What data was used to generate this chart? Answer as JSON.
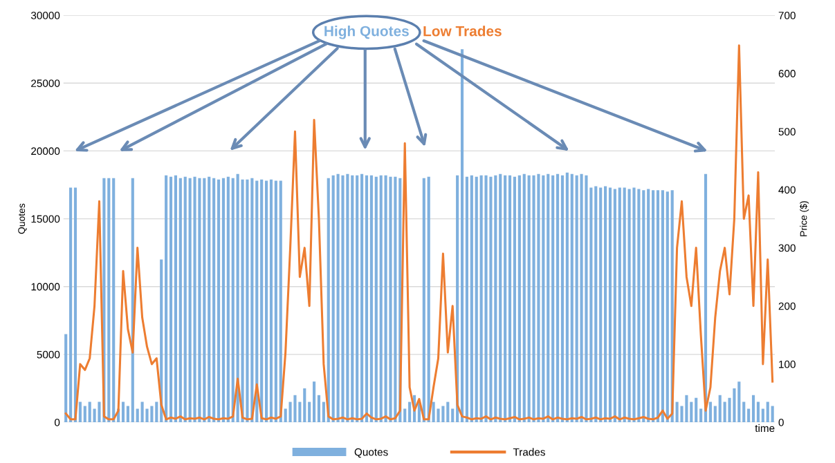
{
  "chart_data": {
    "type": "bar",
    "ylabel": "Quotes",
    "y2label": "Price ($)",
    "xlabel": "time",
    "annotations": [
      "High Quotes",
      "Low Trades"
    ],
    "categories": [
      null,
      null,
      null,
      null,
      null,
      null,
      null,
      null,
      null,
      null,
      null,
      null,
      null,
      null,
      null,
      null,
      null,
      null,
      null,
      null,
      null,
      null,
      null,
      null,
      null,
      null,
      null,
      null,
      null,
      null,
      null,
      null,
      null,
      null,
      null,
      null,
      null,
      null,
      null,
      null,
      null,
      null,
      null,
      null,
      null,
      null,
      null,
      null,
      null,
      null,
      null,
      null,
      null,
      null,
      null,
      null,
      null,
      null,
      null,
      null,
      null,
      null,
      null,
      null,
      null,
      null,
      null,
      null,
      null,
      null,
      null,
      null,
      null,
      null,
      null,
      null,
      null,
      null,
      null,
      null,
      null,
      null,
      null,
      null,
      null,
      null,
      null,
      null,
      null,
      null,
      null,
      null,
      null,
      null,
      null,
      null,
      null,
      null,
      null,
      null,
      null,
      null,
      null,
      null,
      null,
      null,
      null,
      null,
      null,
      null,
      null,
      null,
      null,
      null,
      null,
      null,
      null,
      null,
      null,
      null,
      null,
      null,
      null,
      null,
      null,
      null,
      null,
      null,
      null,
      null,
      null,
      null,
      null,
      null,
      null,
      null,
      null,
      null,
      null,
      null,
      null,
      null,
      null,
      null,
      null,
      null,
      null,
      null,
      null
    ],
    "series": [
      {
        "name": "Quotes",
        "color": "#7fb0de",
        "values": [
          6500,
          17300,
          17300,
          1500,
          1200,
          1500,
          1000,
          1500,
          18000,
          18000,
          18000,
          1000,
          1500,
          1200,
          18000,
          1000,
          1500,
          1000,
          1200,
          1500,
          12000,
          18200,
          18100,
          18200,
          18000,
          18100,
          18000,
          18100,
          18000,
          18000,
          18100,
          18000,
          17900,
          18000,
          18100,
          18000,
          18300,
          17900,
          17900,
          18000,
          17800,
          17900,
          17800,
          17900,
          17800,
          17800,
          1000,
          1500,
          2000,
          1500,
          2500,
          1500,
          3000,
          2000,
          1500,
          18000,
          18200,
          18300,
          18200,
          18300,
          18200,
          18200,
          18300,
          18200,
          18200,
          18100,
          18200,
          18200,
          18100,
          18100,
          18000,
          1000,
          1500,
          2000,
          1500,
          18000,
          18100,
          1500,
          1000,
          1200,
          1500,
          1000,
          18200,
          27500,
          18100,
          18200,
          18100,
          18200,
          18200,
          18100,
          18200,
          18300,
          18200,
          18200,
          18100,
          18200,
          18300,
          18200,
          18200,
          18300,
          18200,
          18300,
          18200,
          18300,
          18200,
          18400,
          18300,
          18200,
          18300,
          18200,
          17300,
          17400,
          17300,
          17400,
          17300,
          17200,
          17300,
          17300,
          17200,
          17300,
          17200,
          17100,
          17200,
          17100,
          17100,
          17100,
          17000,
          17100,
          1500,
          1200,
          2000,
          1500,
          1800,
          1000,
          18300,
          1500,
          1200,
          2000,
          1500,
          1800,
          2500,
          3000,
          1500,
          1000,
          2000,
          1500,
          1000,
          1500,
          1200
        ]
      },
      {
        "name": "Trades",
        "type": "line",
        "axis": "y2",
        "color": "#ed7d31",
        "values": [
          15,
          5,
          5,
          100,
          90,
          110,
          200,
          380,
          10,
          5,
          5,
          20,
          260,
          160,
          120,
          300,
          180,
          130,
          100,
          110,
          30,
          5,
          8,
          6,
          10,
          5,
          7,
          6,
          8,
          5,
          9,
          6,
          5,
          7,
          6,
          10,
          75,
          8,
          5,
          6,
          65,
          7,
          5,
          8,
          6,
          10,
          120,
          300,
          500,
          250,
          300,
          200,
          520,
          350,
          100,
          10,
          5,
          6,
          8,
          5,
          7,
          5,
          6,
          15,
          8,
          5,
          6,
          10,
          5,
          7,
          20,
          480,
          60,
          20,
          40,
          5,
          5,
          60,
          110,
          290,
          120,
          200,
          30,
          10,
          8,
          5,
          7,
          6,
          10,
          5,
          8,
          6,
          5,
          7,
          9,
          5,
          6,
          8,
          5,
          7,
          6,
          10,
          5,
          8,
          6,
          5,
          7,
          6,
          9,
          5,
          6,
          8,
          5,
          7,
          6,
          10,
          5,
          8,
          6,
          5,
          7,
          9,
          6,
          5,
          8,
          20,
          6,
          15,
          300,
          380,
          250,
          200,
          300,
          150,
          20,
          60,
          180,
          260,
          300,
          220,
          350,
          648,
          350,
          390,
          200,
          430,
          100,
          280,
          70
        ]
      }
    ],
    "ylim": [
      0,
      30000
    ],
    "yticks": [
      0,
      5000,
      10000,
      15000,
      20000,
      25000,
      30000
    ],
    "y2lim": [
      0,
      700
    ],
    "y2ticks": [
      0,
      100,
      200,
      300,
      400,
      500,
      600,
      700
    ],
    "grid": "y",
    "legend": "bottom",
    "tick_labels": "y"
  }
}
